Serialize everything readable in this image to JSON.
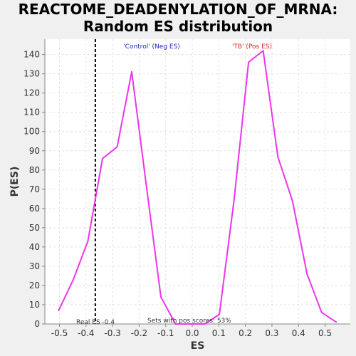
{
  "chart_data": {
    "type": "line",
    "title_line1": "REACTOME_DEADENYLATION_OF_MRNA:",
    "title_line2": "Random ES distribution",
    "xlabel": "ES",
    "ylabel": "P(ES)",
    "xlim": [
      -0.555,
      0.595
    ],
    "ylim": [
      0,
      148
    ],
    "x_ticks": [
      -0.5,
      -0.4,
      -0.3,
      -0.2,
      -0.1,
      0.0,
      0.1,
      0.2,
      0.3,
      0.4,
      0.5
    ],
    "x_tick_labels": [
      "-0.5",
      "-0.4",
      "-0.3",
      "-0.2",
      "-0.1",
      "0.0",
      "0.1",
      "0.2",
      "0.3",
      "0.4",
      "0.5"
    ],
    "y_ticks": [
      0,
      10,
      20,
      30,
      40,
      50,
      60,
      70,
      80,
      90,
      100,
      110,
      120,
      130,
      140
    ],
    "y_tick_labels": [
      "0",
      "10",
      "20",
      "30",
      "40",
      "50",
      "60",
      "70",
      "80",
      "90",
      "100",
      "110",
      "120",
      "130",
      "140"
    ],
    "grid": true,
    "series": [
      {
        "color": "#ee33ee",
        "x": [
          -0.503,
          -0.448,
          -0.393,
          -0.338,
          -0.283,
          -0.228,
          -0.173,
          -0.118,
          -0.063,
          -0.008,
          0.047,
          0.102,
          0.157,
          0.212,
          0.267,
          0.322,
          0.377,
          0.432,
          0.487,
          0.542
        ],
        "values": [
          7,
          23,
          43,
          86,
          92,
          131,
          72,
          14,
          0,
          0,
          0,
          5,
          64,
          136,
          142,
          87,
          64,
          26,
          6,
          1
        ]
      }
    ],
    "real_es": -0.365,
    "annotations": {
      "control_label": "'Control' (Neg ES)",
      "control_color": "#2222cc",
      "tb_label": "'TB' (Pos ES)",
      "tb_color": "#dd2222",
      "real_es_label": "Real ES -0.4",
      "pos_scores_label": "Sets with pos scores: 53%"
    }
  }
}
